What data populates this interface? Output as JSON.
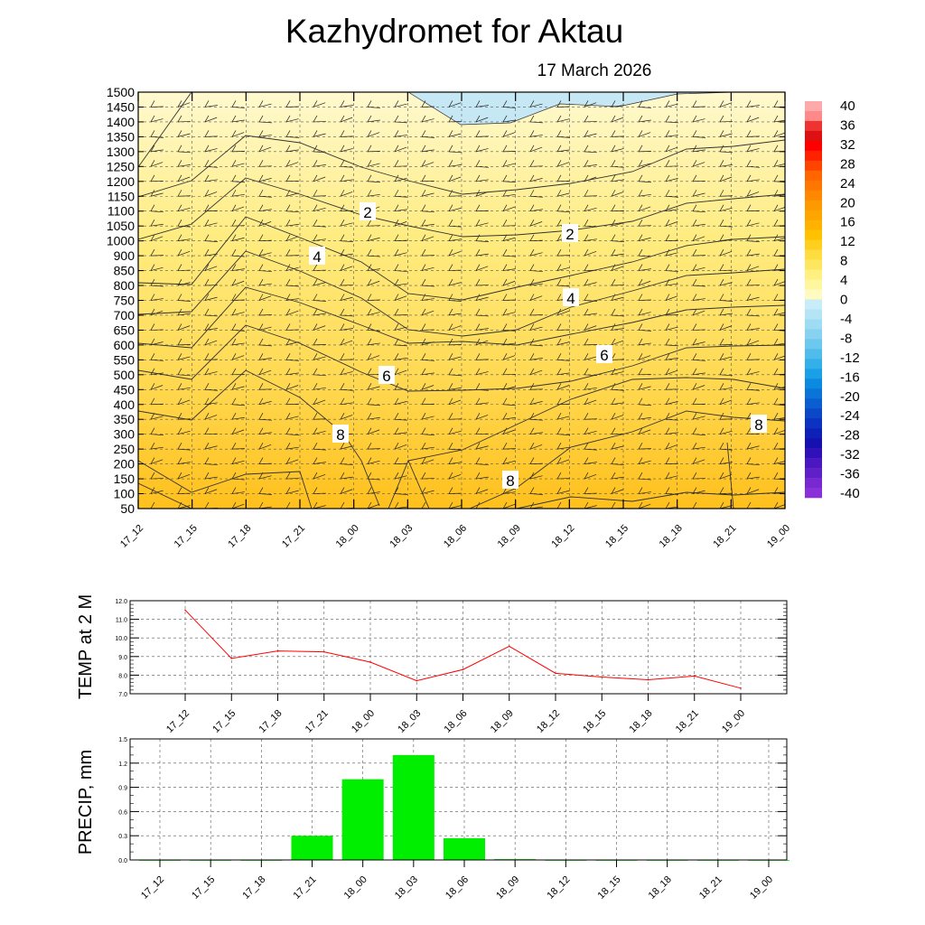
{
  "header": {
    "title": "Kazhydromet  for Aktau",
    "date": "17 March 2026"
  },
  "colors": {
    "temp_line": "#ff0000",
    "precip_bar": "#00ee00",
    "cold_fill": "#c6e8f5",
    "warm_top": "#fff7c2",
    "warm_bottom": "#ffc11e"
  },
  "chart_data": [
    {
      "type": "heatmap",
      "title": "Kazhydromet  for Aktau",
      "subtitle": "17 March 2026",
      "x": [
        "17_12",
        "17_15",
        "17_18",
        "17_21",
        "18_00",
        "18_03",
        "18_06",
        "18_09",
        "18_12",
        "18_15",
        "18_18",
        "18_21",
        "19_00"
      ],
      "y_ticks": [
        1500,
        1450,
        1400,
        1350,
        1300,
        1250,
        1200,
        1150,
        1100,
        1050,
        1000,
        900,
        850,
        800,
        750,
        700,
        650,
        600,
        550,
        500,
        450,
        400,
        350,
        300,
        250,
        200,
        150,
        100,
        50
      ],
      "ylim": [
        50,
        1500
      ],
      "grid": true,
      "contour_labels": [
        {
          "value": "2",
          "x": "18_00",
          "y": 1100
        },
        {
          "value": "2",
          "x": "18_12",
          "y": 1000
        },
        {
          "value": "4",
          "x": "17_21",
          "y": 900
        },
        {
          "value": "4",
          "x": "18_12",
          "y": 750
        },
        {
          "value": "6",
          "x": "18_00",
          "y": 500
        },
        {
          "value": "6",
          "x": "18_12",
          "y": 550
        },
        {
          "value": "8",
          "x": "17_21",
          "y": 300
        },
        {
          "value": "8",
          "x": "18_09",
          "y": 150
        },
        {
          "value": "8",
          "x": "19_00",
          "y": 350
        }
      ],
      "colorbar": {
        "labels": [
          "40",
          "36",
          "32",
          "28",
          "24",
          "20",
          "16",
          "12",
          "8",
          "4",
          "0",
          "-4",
          "-8",
          "-12",
          "-16",
          "-20",
          "-24",
          "-28",
          "-32",
          "-36",
          "-40"
        ],
        "placement": "right"
      }
    },
    {
      "type": "line",
      "ylabel": "TEMP at 2 M",
      "categories": [
        "17_12",
        "17_15",
        "17_18",
        "17_21",
        "18_00",
        "18_03",
        "18_06",
        "18_09",
        "18_12",
        "18_15",
        "18_18",
        "18_21",
        "19_00"
      ],
      "values": [
        11.5,
        8.9,
        9.3,
        9.25,
        8.7,
        7.7,
        8.3,
        9.55,
        8.1,
        7.9,
        7.75,
        7.95,
        7.3
      ],
      "ylim": [
        7.0,
        12.0
      ],
      "y_ticks": [
        "12.0",
        "11.0",
        "10.0",
        "9.0",
        "8.0",
        "7.0"
      ],
      "grid": true
    },
    {
      "type": "bar",
      "ylabel": "PRECIP, mm",
      "categories": [
        "17_12",
        "17_15",
        "17_18",
        "17_21",
        "18_00",
        "18_03",
        "18_06",
        "18_09",
        "18_12",
        "18_15",
        "18_18",
        "18_21",
        "19_00"
      ],
      "values": [
        0,
        0,
        0,
        0.3,
        1.0,
        1.3,
        0.27,
        0.01,
        0,
        0,
        0,
        0,
        0
      ],
      "ylim": [
        0.0,
        1.5
      ],
      "y_ticks": [
        "1.5",
        "1.2",
        "0.9",
        "0.6",
        "0.3",
        "0.0"
      ],
      "grid": true
    }
  ]
}
